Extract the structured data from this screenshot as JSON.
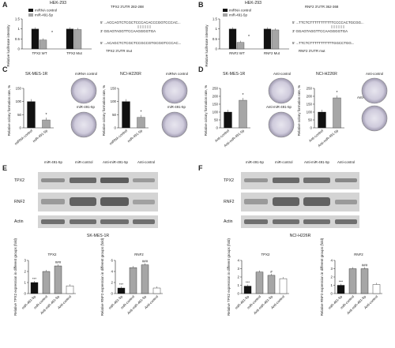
{
  "panels": {
    "A": {
      "letter": "A",
      "cell": "HEK-293",
      "ylabel": "Relative luciferase intensity",
      "legend": [
        "miRNA control",
        "miR-491-5p"
      ],
      "groups": [
        "TPX2 WT",
        "TPX2 Mut"
      ],
      "star": "*",
      "seq_title": "TPX2 3'UTR 282-288",
      "seq_wt": "5' ...ACCAGTCTCGCTCCCACACCCGGTCCCAC...",
      "seq_mir": "3' GGAGTAGGTTCCAAGGGGTGA",
      "seq_mut": "5' ...ACAGCTCTCGCTCCGCCGTGCGGTCCCAC...",
      "seq_mut_title": "TPX2 3'UTR mut"
    },
    "B": {
      "letter": "B",
      "cell": "HEK-293",
      "ylabel": "Relative luciferase intensity",
      "legend": [
        "miRNA control",
        "miR-491-5p"
      ],
      "groups": [
        "RNF2 WT",
        "RNF2 Mut"
      ],
      "star": "*",
      "seq_title": "RNF2 3'UTR 362-368",
      "seq_wt": "5' ...TTCTCTTTTTTTTTTTCCCCACTGCGG...",
      "seq_mir": "3' GGAGTAGGTTCCAAGGGGTGA",
      "seq_mut": "5' ...TTCTCTTTTTTTTTTTGGCCTGG...",
      "seq_mut_title": "RNF2 3'UTR mut"
    },
    "C": {
      "letter": "C",
      "cells": [
        "SK-MES-1R",
        "NCI-H226R"
      ],
      "ylabel": "Relative colony formation rate, %",
      "xlabels": [
        "miRNA control",
        "miR-491-5p"
      ],
      "plate_labels": [
        "miRNA control",
        "miR-491-5p"
      ],
      "star": "*"
    },
    "D": {
      "letter": "D",
      "cells": [
        "SK-MES-1R",
        "NCI-H226R"
      ],
      "ylabel": "Relative colony formation rate, %",
      "xlabels": [
        "Anti-control",
        "Anti-miR-491-5p"
      ],
      "plate_labels": [
        "Anti-control",
        "Anti-miR-491-5p"
      ],
      "star": "*"
    },
    "E": {
      "letter": "E",
      "cell": "SK-MES-1R",
      "lanes": [
        "miR-491-5p",
        "miR-control",
        "Anti-miR-491-5p",
        "Anti-control"
      ],
      "rows": [
        "TPX2",
        "RNF2",
        "Actin"
      ],
      "plots": [
        {
          "title": "TPX2",
          "ylabel": "Relative TPX2 expression in different groups (fold)",
          "marks": [
            "***",
            "",
            "###",
            ""
          ]
        },
        {
          "title": "RNF2",
          "ylabel": "Relative RNF2 expression in different groups (fold)",
          "marks": [
            "***",
            "",
            "###",
            ""
          ]
        }
      ]
    },
    "F": {
      "letter": "F",
      "cell": "NCI-H226R",
      "lanes": [
        "miR-491-5p",
        "miR-control",
        "Anti-miR-491-5p",
        "Anti-control"
      ],
      "rows": [
        "TPX2",
        "RNF2",
        "Actin"
      ],
      "plots": [
        {
          "title": "TPX2",
          "ylabel": "Relative TPX2 expression in different groups (fold)",
          "marks": [
            "***",
            "",
            "#",
            ""
          ]
        },
        {
          "title": "RNF2",
          "ylabel": "Relative RNF2 expression in different groups (fold)",
          "marks": [
            "***",
            "",
            "###",
            ""
          ]
        }
      ]
    }
  },
  "colors": {
    "black": "#111111",
    "gray": "#a6a6a6",
    "white": "#ffffff"
  },
  "chart_data": [
    {
      "type": "bar",
      "panel": "A",
      "categories": [
        "TPX2 WT",
        "TPX2 Mut"
      ],
      "ylim": [
        0,
        1.5
      ],
      "series": [
        {
          "name": "miRNA control",
          "values": [
            1.0,
            1.0
          ]
        },
        {
          "name": "miR-491-5p",
          "values": [
            0.45,
            0.97
          ]
        }
      ]
    },
    {
      "type": "bar",
      "panel": "B",
      "categories": [
        "RNF2 WT",
        "RNF2 Mut"
      ],
      "ylim": [
        0,
        1.5
      ],
      "series": [
        {
          "name": "miRNA control",
          "values": [
            1.0,
            1.0
          ]
        },
        {
          "name": "miR-491-5p",
          "values": [
            0.33,
            0.95
          ]
        }
      ]
    },
    {
      "type": "bar",
      "panel": "C",
      "subtitle": "SK-MES-1R",
      "categories": [
        "miRNA control",
        "miR-491-5p"
      ],
      "values": [
        100,
        30
      ],
      "ylim": [
        0,
        150
      ]
    },
    {
      "type": "bar",
      "panel": "C",
      "subtitle": "NCI-H226R",
      "categories": [
        "miRNA control",
        "miR-491-5p"
      ],
      "values": [
        100,
        40
      ],
      "ylim": [
        0,
        150
      ]
    },
    {
      "type": "bar",
      "panel": "D",
      "subtitle": "SK-MES-1R",
      "categories": [
        "Anti-control",
        "Anti-miR-491-5p"
      ],
      "values": [
        100,
        175
      ],
      "ylim": [
        0,
        250
      ]
    },
    {
      "type": "bar",
      "panel": "D",
      "subtitle": "NCI-H226R",
      "categories": [
        "Anti-control",
        "Anti-miR-491-5p"
      ],
      "values": [
        100,
        190
      ],
      "ylim": [
        0,
        250
      ]
    },
    {
      "type": "bar",
      "panel": "E",
      "subtitle": "TPX2",
      "categories": [
        "miR-491-5p",
        "miR-control",
        "Anti-miR-491-5p",
        "Anti-control"
      ],
      "values": [
        1.0,
        2.0,
        2.5,
        0.7
      ],
      "ylim": [
        0,
        3
      ]
    },
    {
      "type": "bar",
      "panel": "E",
      "subtitle": "RNF2",
      "categories": [
        "miR-491-5p",
        "miR-control",
        "Anti-miR-491-5p",
        "Anti-control"
      ],
      "values": [
        1.0,
        4.7,
        5.2,
        1.0
      ],
      "ylim": [
        0,
        6
      ]
    },
    {
      "type": "bar",
      "panel": "F",
      "subtitle": "TPX2",
      "categories": [
        "miR-491-5p",
        "miR-control",
        "Anti-miR-491-5p",
        "Anti-control"
      ],
      "values": [
        0.9,
        2.6,
        2.2,
        1.8
      ],
      "ylim": [
        0,
        4
      ]
    },
    {
      "type": "bar",
      "panel": "F",
      "subtitle": "RNF2",
      "categories": [
        "miR-491-5p",
        "miR-control",
        "Anti-miR-491-5p",
        "Anti-control"
      ],
      "values": [
        1.0,
        3.0,
        3.0,
        1.1
      ],
      "ylim": [
        0,
        4
      ]
    }
  ]
}
